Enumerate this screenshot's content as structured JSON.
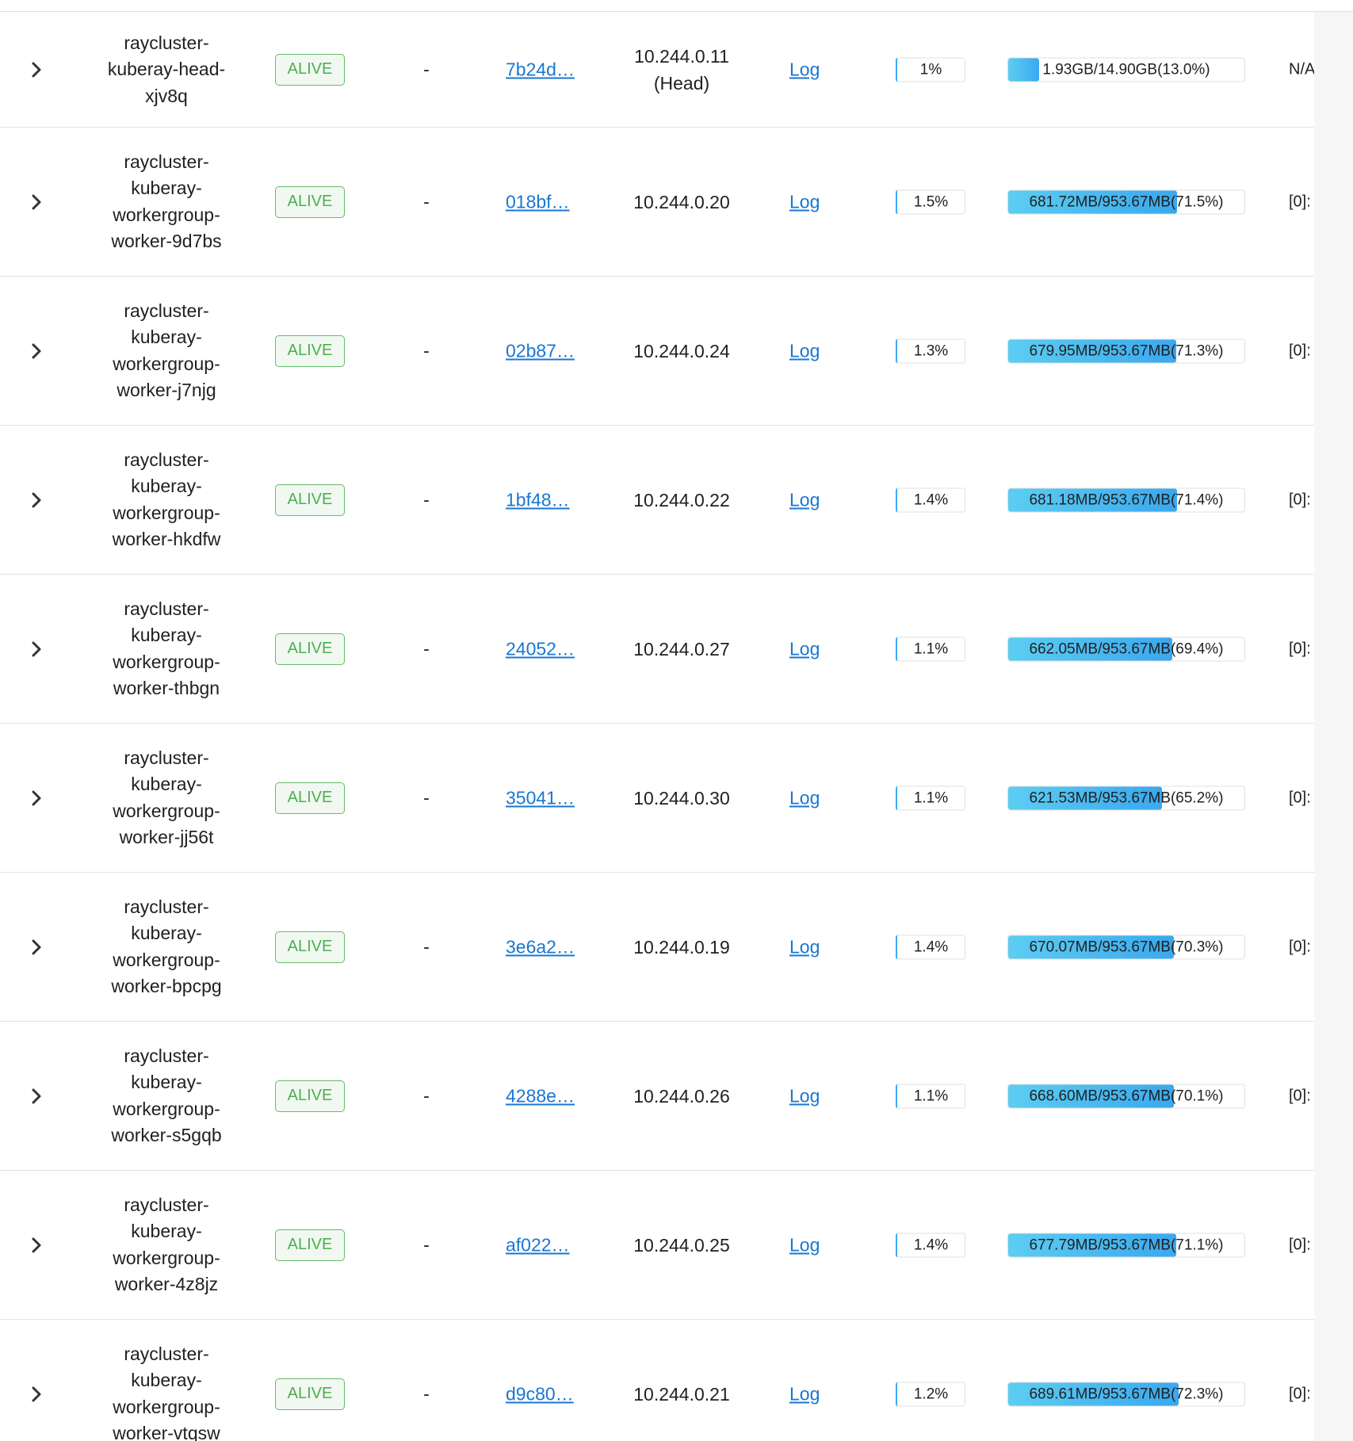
{
  "rows": [
    {
      "host": [
        "raycluster-",
        "kuberay-head-",
        "xjv8q"
      ],
      "state": "ALIVE",
      "node_id": "7b24d…",
      "ip": [
        "10.244.0.11",
        "(Head)"
      ],
      "log": "Log",
      "cpu": "1%",
      "mem_text": "1.93GB/14.90GB(13.0%)",
      "mem_fraction": 0.13,
      "gpu": "N/A"
    },
    {
      "host": [
        "raycluster-",
        "kuberay-",
        "workergroup-",
        "worker-9d7bs"
      ],
      "state": "ALIVE",
      "node_id": "018bf…",
      "ip": [
        "10.244.0.20"
      ],
      "log": "Log",
      "cpu": "1.5%",
      "mem_text": "681.72MB/953.67MB(71.5%)",
      "mem_fraction": 0.715,
      "gpu": "[0]:"
    },
    {
      "host": [
        "raycluster-",
        "kuberay-",
        "workergroup-",
        "worker-j7njg"
      ],
      "state": "ALIVE",
      "node_id": "02b87…",
      "ip": [
        "10.244.0.24"
      ],
      "log": "Log",
      "cpu": "1.3%",
      "mem_text": "679.95MB/953.67MB(71.3%)",
      "mem_fraction": 0.713,
      "gpu": "[0]:"
    },
    {
      "host": [
        "raycluster-",
        "kuberay-",
        "workergroup-",
        "worker-hkdfw"
      ],
      "state": "ALIVE",
      "node_id": "1bf48…",
      "ip": [
        "10.244.0.22"
      ],
      "log": "Log",
      "cpu": "1.4%",
      "mem_text": "681.18MB/953.67MB(71.4%)",
      "mem_fraction": 0.714,
      "gpu": "[0]:"
    },
    {
      "host": [
        "raycluster-",
        "kuberay-",
        "workergroup-",
        "worker-thbgn"
      ],
      "state": "ALIVE",
      "node_id": "24052…",
      "ip": [
        "10.244.0.27"
      ],
      "log": "Log",
      "cpu": "1.1%",
      "mem_text": "662.05MB/953.67MB(69.4%)",
      "mem_fraction": 0.694,
      "gpu": "[0]:"
    },
    {
      "host": [
        "raycluster-",
        "kuberay-",
        "workergroup-",
        "worker-jj56t"
      ],
      "state": "ALIVE",
      "node_id": "35041…",
      "ip": [
        "10.244.0.30"
      ],
      "log": "Log",
      "cpu": "1.1%",
      "mem_text": "621.53MB/953.67MB(65.2%)",
      "mem_fraction": 0.652,
      "gpu": "[0]:"
    },
    {
      "host": [
        "raycluster-",
        "kuberay-",
        "workergroup-",
        "worker-bpcpg"
      ],
      "state": "ALIVE",
      "node_id": "3e6a2…",
      "ip": [
        "10.244.0.19"
      ],
      "log": "Log",
      "cpu": "1.4%",
      "mem_text": "670.07MB/953.67MB(70.3%)",
      "mem_fraction": 0.703,
      "gpu": "[0]:"
    },
    {
      "host": [
        "raycluster-",
        "kuberay-",
        "workergroup-",
        "worker-s5gqb"
      ],
      "state": "ALIVE",
      "node_id": "4288e…",
      "ip": [
        "10.244.0.26"
      ],
      "log": "Log",
      "cpu": "1.1%",
      "mem_text": "668.60MB/953.67MB(70.1%)",
      "mem_fraction": 0.701,
      "gpu": "[0]:"
    },
    {
      "host": [
        "raycluster-",
        "kuberay-",
        "workergroup-",
        "worker-4z8jz"
      ],
      "state": "ALIVE",
      "node_id": "af022…",
      "ip": [
        "10.244.0.25"
      ],
      "log": "Log",
      "cpu": "1.4%",
      "mem_text": "677.79MB/953.67MB(71.1%)",
      "mem_fraction": 0.711,
      "gpu": "[0]:"
    },
    {
      "host": [
        "raycluster-",
        "kuberay-",
        "workergroup-",
        "worker-vtqsw"
      ],
      "state": "ALIVE",
      "node_id": "d9c80…",
      "ip": [
        "10.244.0.21"
      ],
      "log": "Log",
      "cpu": "1.2%",
      "mem_text": "689.61MB/953.67MB(72.3%)",
      "mem_fraction": 0.723,
      "gpu": "[0]:"
    }
  ],
  "icons": {
    "expand": "chevron-right-icon"
  },
  "colors": {
    "alive_border": "#66bb6a",
    "alive_text": "#4caf50",
    "link": "#1976d2",
    "mem_fill": "#3aa8ef"
  }
}
